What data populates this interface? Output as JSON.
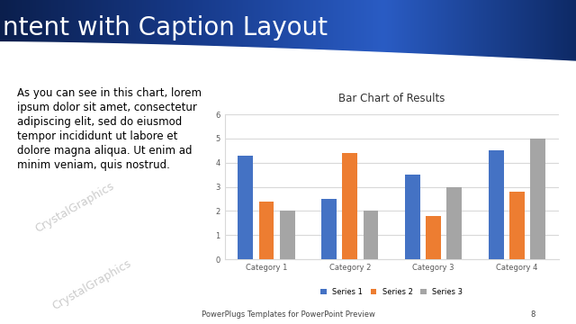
{
  "slide": {
    "title": "ntent with Caption Layout",
    "caption": "As you can see in this chart, lorem ipsum dolor sit amet, consectetur adipiscing elit, sed do eiusmod tempor incididunt ut labore et dolore magna aliqua. Ut enim ad minim veniam, quis nostrud.",
    "footer": "PowerPlugs Templates for PowerPoint Preview",
    "page": 8,
    "watermark": "CrystalGraphics"
  },
  "chart_data": {
    "type": "bar",
    "title": "Bar Chart of Results",
    "categories": [
      "Category 1",
      "Category 2",
      "Category 3",
      "Category 4"
    ],
    "series": [
      {
        "name": "Series 1",
        "color": "#4472c4",
        "values": [
          4.3,
          2.5,
          3.5,
          4.5
        ]
      },
      {
        "name": "Series 2",
        "color": "#ed7d31",
        "values": [
          2.4,
          4.4,
          1.8,
          2.8
        ]
      },
      {
        "name": "Series 3",
        "color": "#a5a5a5",
        "values": [
          2,
          2,
          3,
          5
        ]
      }
    ],
    "ylim": [
      0,
      6
    ],
    "yticks": [
      0,
      1,
      2,
      3,
      4,
      5,
      6
    ],
    "grid": true,
    "legend": "lower center"
  }
}
